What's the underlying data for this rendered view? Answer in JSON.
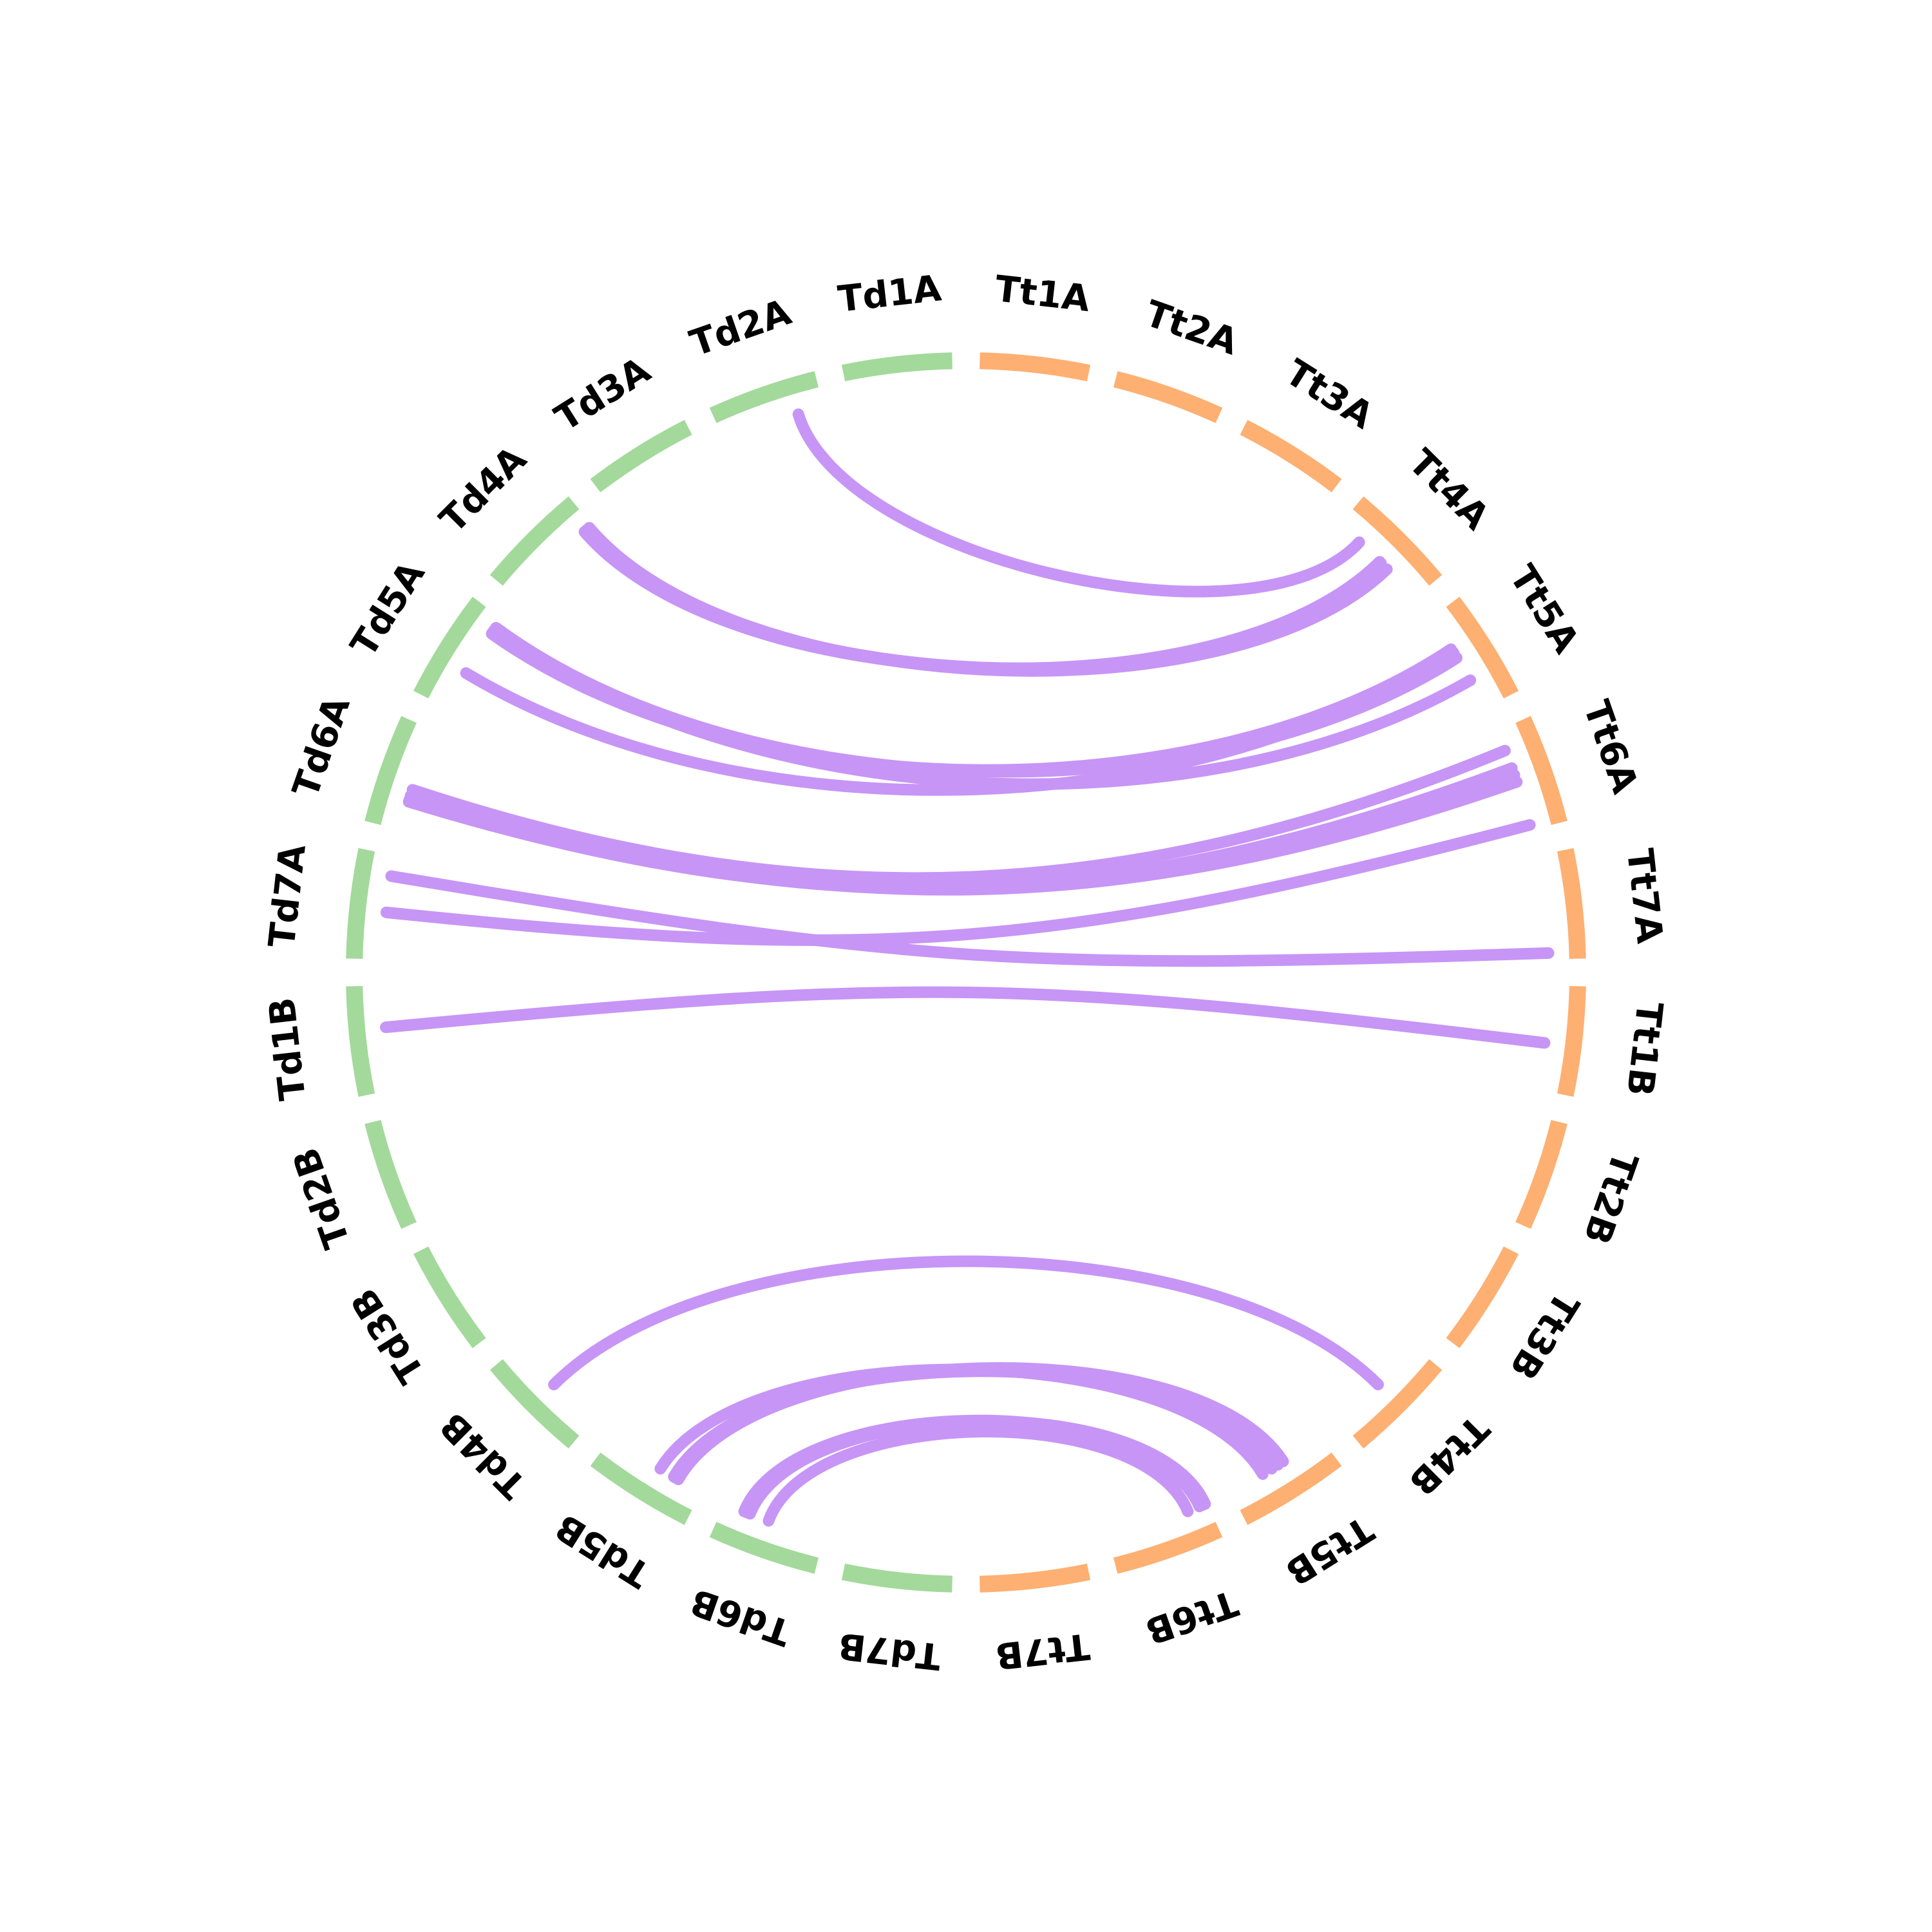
{
  "colors": {
    "genome_a": "#a3d99b",
    "genome_b": "#fdb072",
    "link": "#c795f5",
    "background": "#ffffff"
  },
  "chromosomes": [
    {
      "id": "Td1A",
      "label": "Td1A",
      "genome": "a"
    },
    {
      "id": "Td2A",
      "label": "Td2A",
      "genome": "a"
    },
    {
      "id": "Td3A",
      "label": "Td3A",
      "genome": "a"
    },
    {
      "id": "Td4A",
      "label": "Td4A",
      "genome": "a"
    },
    {
      "id": "Td5A",
      "label": "Td5A",
      "genome": "a"
    },
    {
      "id": "Td6A",
      "label": "Td6A",
      "genome": "a"
    },
    {
      "id": "Td7A",
      "label": "Td7A",
      "genome": "a"
    },
    {
      "id": "Td1B",
      "label": "Td1B",
      "genome": "a"
    },
    {
      "id": "Td2B",
      "label": "Td2B",
      "genome": "a"
    },
    {
      "id": "Td3B",
      "label": "Td3B",
      "genome": "a"
    },
    {
      "id": "Td4B",
      "label": "Td4B",
      "genome": "a"
    },
    {
      "id": "Td5B",
      "label": "Td5B",
      "genome": "a"
    },
    {
      "id": "Td6B",
      "label": "Td6B",
      "genome": "a"
    },
    {
      "id": "Td7B",
      "label": "Td7B",
      "genome": "a"
    },
    {
      "id": "Tt7B",
      "label": "Tt7B",
      "genome": "b"
    },
    {
      "id": "Tt6B",
      "label": "Tt6B",
      "genome": "b"
    },
    {
      "id": "Tt5B",
      "label": "Tt5B",
      "genome": "b"
    },
    {
      "id": "Tt4B",
      "label": "Tt4B",
      "genome": "b"
    },
    {
      "id": "Tt3B",
      "label": "Tt3B",
      "genome": "b"
    },
    {
      "id": "Tt2B",
      "label": "Tt2B",
      "genome": "b"
    },
    {
      "id": "Tt1B",
      "label": "Tt1B",
      "genome": "b"
    },
    {
      "id": "Tt7A",
      "label": "Tt7A",
      "genome": "b"
    },
    {
      "id": "Tt6A",
      "label": "Tt6A",
      "genome": "b"
    },
    {
      "id": "Tt5A",
      "label": "Tt5A",
      "genome": "b"
    },
    {
      "id": "Tt4A",
      "label": "Tt4A",
      "genome": "b"
    },
    {
      "id": "Tt3A",
      "label": "Tt3A",
      "genome": "b"
    },
    {
      "id": "Tt2A",
      "label": "Tt2A",
      "genome": "b"
    },
    {
      "id": "Tt1A",
      "label": "Tt1A",
      "genome": "b"
    }
  ],
  "links": [
    {
      "from": "Td2A",
      "from_pos": 0.25,
      "to": "Tt4A",
      "to_pos": 0.75
    },
    {
      "from": "Td4A",
      "from_pos": 0.1,
      "to": "Tt4A",
      "to_pos": 0.48
    },
    {
      "from": "Td4A",
      "from_pos": 0.07,
      "to": "Tt4A",
      "to_pos": 0.46
    },
    {
      "from": "Td4A",
      "from_pos": 0.04,
      "to": "Tt4A",
      "to_pos": 0.38
    },
    {
      "from": "Td5A",
      "from_pos": 0.62,
      "to": "Tt5A",
      "to_pos": 0.62
    },
    {
      "from": "Td5A",
      "from_pos": 0.1,
      "to": "Tt5A",
      "to_pos": 0.55
    },
    {
      "from": "Td5A",
      "from_pos": 0.14,
      "to": "Tt5A",
      "to_pos": 0.6
    },
    {
      "from": "Td5A",
      "from_pos": 0.17,
      "to": "Tt5A",
      "to_pos": 0.65
    },
    {
      "from": "Td5A",
      "from_pos": 0.12,
      "to": "Tt5A",
      "to_pos": 0.3
    },
    {
      "from": "Td6A",
      "from_pos": 0.72,
      "to": "Tt6A",
      "to_pos": 0.62
    },
    {
      "from": "Td6A",
      "from_pos": 0.7,
      "to": "Tt6A",
      "to_pos": 0.55
    },
    {
      "from": "Td6A",
      "from_pos": 0.66,
      "to": "Tt6A",
      "to_pos": 0.48
    },
    {
      "from": "Td6A",
      "from_pos": 0.6,
      "to": "Tt6A",
      "to_pos": 0.8
    },
    {
      "from": "Td7A",
      "from_pos": 0.55,
      "to": "Tt6A",
      "to_pos": 0.05
    },
    {
      "from": "Td7A",
      "from_pos": 0.2,
      "to": "Tt7A",
      "to_pos": 0.06
    },
    {
      "from": "Td1B",
      "from_pos": 0.4,
      "to": "Tt1B",
      "to_pos": 0.45
    },
    {
      "from": "Td4B",
      "from_pos": 0.5,
      "to": "Tt4B",
      "to_pos": 0.5
    },
    {
      "from": "Td5B",
      "from_pos": 0.55,
      "to": "Tt5B",
      "to_pos": 0.35
    },
    {
      "from": "Td5B",
      "from_pos": 0.7,
      "to": "Tt5B",
      "to_pos": 0.45
    },
    {
      "from": "Td5B",
      "from_pos": 0.72,
      "to": "Tt5B",
      "to_pos": 0.52
    },
    {
      "from": "Td5B",
      "from_pos": 0.75,
      "to": "Tt5B",
      "to_pos": 0.58
    },
    {
      "from": "Td6B",
      "from_pos": 0.2,
      "to": "Tt6B",
      "to_pos": 0.95
    },
    {
      "from": "Td6B",
      "from_pos": 0.23,
      "to": "Tt6B",
      "to_pos": 0.92
    },
    {
      "from": "Td6B",
      "from_pos": 0.26,
      "to": "Tt6B",
      "to_pos": 0.98
    },
    {
      "from": "Td6B",
      "from_pos": 0.45,
      "to": "Tt6B",
      "to_pos": 0.8
    }
  ]
}
